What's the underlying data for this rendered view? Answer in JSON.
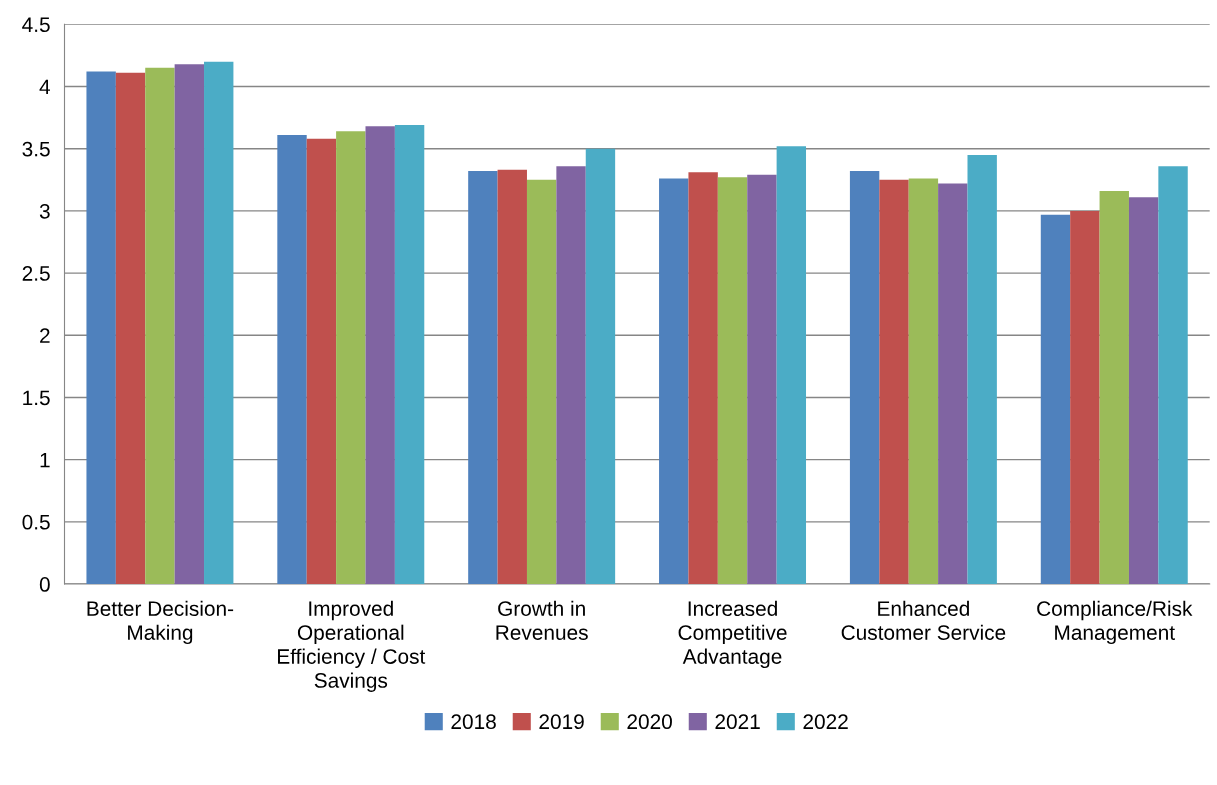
{
  "chart_data": {
    "type": "bar",
    "categories": [
      "Better Decision-\nMaking",
      "Improved\nOperational\nEfficiency / Cost\nSavings",
      "Growth in\nRevenues",
      "Increased\nCompetitive\nAdvantage",
      "Enhanced\nCustomer Service",
      "Compliance/Risk\nManagement"
    ],
    "series": [
      {
        "name": "2018",
        "color": "#4f81bd",
        "values": [
          4.12,
          3.61,
          3.32,
          3.26,
          3.32,
          2.97
        ]
      },
      {
        "name": "2019",
        "color": "#c0504d",
        "values": [
          4.11,
          3.58,
          3.33,
          3.31,
          3.25,
          3.0
        ]
      },
      {
        "name": "2020",
        "color": "#9bbb59",
        "values": [
          4.15,
          3.64,
          3.25,
          3.27,
          3.26,
          3.16
        ]
      },
      {
        "name": "2021",
        "color": "#8064a2",
        "values": [
          4.18,
          3.68,
          3.36,
          3.29,
          3.22,
          3.11
        ]
      },
      {
        "name": "2022",
        "color": "#4bacc6",
        "values": [
          4.2,
          3.69,
          3.5,
          3.52,
          3.45,
          3.36
        ]
      }
    ],
    "ylim": [
      0,
      4.5
    ],
    "yticks": [
      0,
      0.5,
      1,
      1.5,
      2,
      2.5,
      3,
      3.5,
      4,
      4.5
    ],
    "grid": "y",
    "legend": "bottom"
  }
}
